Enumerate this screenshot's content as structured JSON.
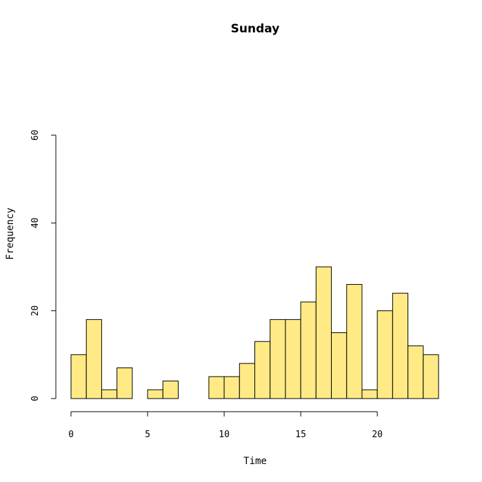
{
  "chart_data": {
    "type": "bar",
    "title": "Sunday",
    "xlabel": "Time",
    "ylabel": "Frequency",
    "bar_color": "#FFEA85",
    "bin_width": 1,
    "bins_start": [
      0,
      1,
      2,
      3,
      4,
      5,
      6,
      7,
      8,
      9,
      10,
      11,
      12,
      13,
      14,
      15,
      16,
      17,
      18,
      19,
      20,
      21,
      22,
      23
    ],
    "values": [
      10,
      18,
      2,
      7,
      0,
      2,
      4,
      0,
      0,
      5,
      5,
      8,
      13,
      18,
      18,
      22,
      30,
      15,
      26,
      2,
      20,
      24,
      12,
      10
    ],
    "xlim": [
      0,
      24
    ],
    "ylim": [
      0,
      60
    ],
    "x_ticks": [
      0,
      5,
      10,
      15,
      20
    ],
    "y_ticks": [
      0,
      20,
      40,
      60
    ],
    "grid": false
  }
}
